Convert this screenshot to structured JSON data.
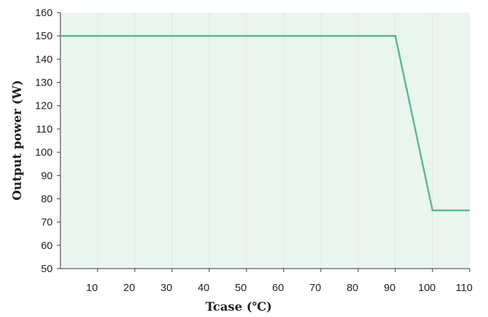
{
  "chart_data": {
    "type": "line",
    "title": "",
    "xlabel": "Tcase (℃)",
    "ylabel": "Output power (W)",
    "xlim": [
      0,
      110
    ],
    "ylim": [
      50,
      160
    ],
    "x_ticks": [
      10,
      20,
      30,
      40,
      50,
      60,
      70,
      80,
      90,
      100,
      110
    ],
    "y_ticks": [
      50,
      60,
      70,
      80,
      90,
      100,
      110,
      120,
      130,
      140,
      150,
      160
    ],
    "grid": true,
    "legend": "none",
    "series": [
      {
        "x": [
          0,
          90,
          100,
          110
        ],
        "y": [
          150,
          150,
          75,
          75
        ]
      }
    ],
    "colors": {
      "plot_background": "#eaf5ef",
      "grid": "#e0e8e3",
      "axis": "#333333",
      "line": "#5cb88f"
    }
  }
}
